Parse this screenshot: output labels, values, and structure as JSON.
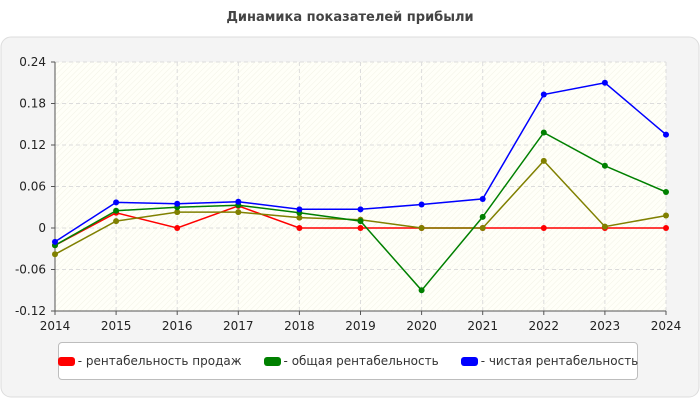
{
  "chart_data": {
    "type": "line",
    "title": "Динамика показателей прибыли",
    "xlabel": "",
    "ylabel": "",
    "x": [
      2014,
      2015,
      2016,
      2017,
      2018,
      2019,
      2020,
      2021,
      2022,
      2023,
      2024
    ],
    "y_ticks": [
      "-0.12",
      "-0.06",
      "0",
      "0.06",
      "0.12",
      "0.18",
      "0.24"
    ],
    "ylim": [
      -0.12,
      0.24
    ],
    "grid": true,
    "legend_position": "bottom",
    "series": [
      {
        "name": "- рентабельность продаж",
        "color": "#ff0000",
        "values": [
          -0.025,
          0.022,
          0.0,
          0.032,
          0.0,
          0.0,
          0.0,
          0.0,
          0.0,
          0.0,
          0.0
        ]
      },
      {
        "name": "",
        "color": "#808000",
        "values": [
          -0.038,
          0.01,
          0.023,
          0.023,
          0.015,
          0.012,
          0.0,
          0.0,
          0.097,
          0.002,
          0.018
        ]
      },
      {
        "name": "- общая рентабельность",
        "color": "#008000",
        "values": [
          -0.025,
          0.025,
          0.03,
          0.033,
          0.022,
          0.01,
          -0.09,
          0.016,
          0.138,
          0.09,
          0.052
        ]
      },
      {
        "name": "- чистая рентабельность",
        "color": "#0000ff",
        "values": [
          -0.02,
          0.037,
          0.035,
          0.038,
          0.027,
          0.027,
          0.034,
          0.042,
          0.193,
          0.21,
          0.135
        ]
      }
    ],
    "legend": [
      {
        "label": "- рентабельность продаж",
        "color": "#ff0000"
      },
      {
        "label": "- общая рентабельность",
        "color": "#008000"
      },
      {
        "label": "- чистая рентабельность",
        "color": "#0000ff"
      }
    ]
  }
}
